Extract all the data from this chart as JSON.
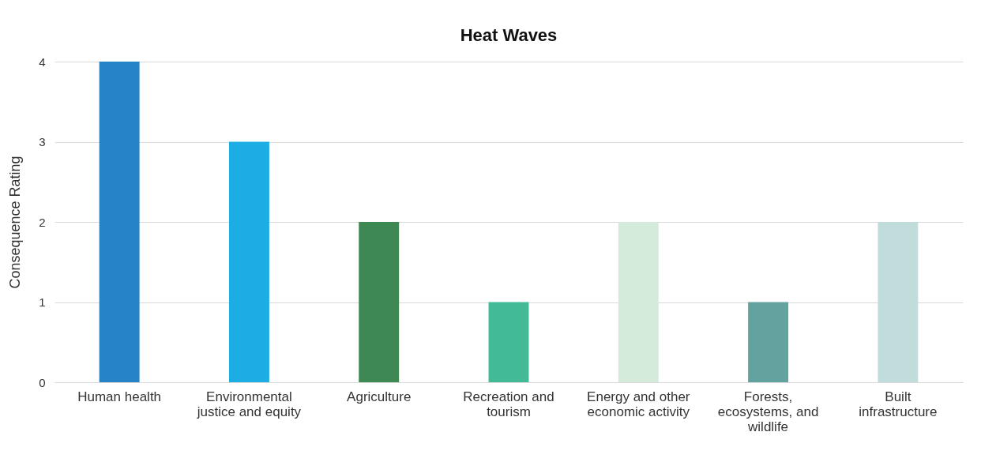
{
  "chart_data": {
    "type": "bar",
    "title": "Heat Waves",
    "ylabel": "Consequence Rating",
    "categories": [
      "Human health",
      "Environmental justice and equity",
      "Agriculture",
      "Recreation and tourism",
      "Energy and other economic activity",
      "Forests, ecosystems, and wildlife",
      "Built infrastructure"
    ],
    "values": [
      4,
      3,
      2,
      1,
      2,
      1,
      2
    ],
    "colors": [
      "#2683c6",
      "#1cade4",
      "#3e8853",
      "#42ba97",
      "#d4eadb",
      "#62a39f",
      "#c0dcdb"
    ],
    "ylim": [
      0,
      4
    ],
    "yticks": [
      0,
      1,
      2,
      3,
      4
    ],
    "grid": "y"
  }
}
